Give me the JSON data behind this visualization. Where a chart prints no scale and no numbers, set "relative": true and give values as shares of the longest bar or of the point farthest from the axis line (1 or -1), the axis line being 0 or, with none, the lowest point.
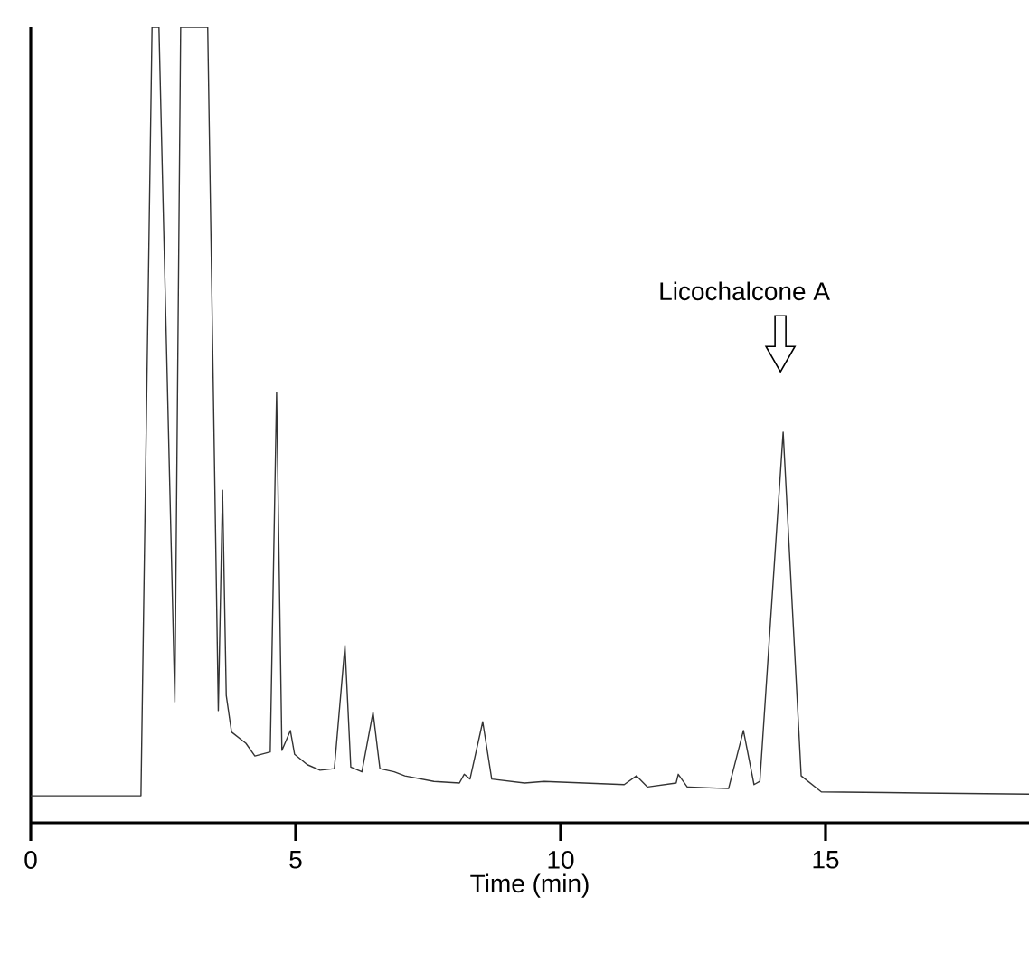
{
  "chart_data": {
    "type": "line",
    "relative": true,
    "xlabel": "Time (min)",
    "xlim": [
      0,
      18.84
    ],
    "xticks": [
      0,
      5,
      10,
      15
    ],
    "grid": false,
    "marker": "none",
    "line_style": "solid",
    "annotations": [
      "Licochalcone A"
    ],
    "series": [
      {
        "color": "#333333",
        "x": [
          0,
          2.08,
          2.29,
          2.42,
          2.72,
          2.83,
          3.34,
          3.54,
          3.62,
          3.69,
          3.79,
          4.06,
          4.23,
          4.52,
          4.64,
          4.74,
          4.9,
          4.98,
          5.22,
          5.46,
          5.73,
          5.93,
          6.04,
          6.25,
          6.46,
          6.59,
          6.86,
          7.06,
          7.61,
          8.09,
          8.18,
          8.29,
          8.53,
          8.7,
          9.32,
          9.69,
          11.2,
          11.43,
          11.64,
          12.18,
          12.22,
          12.39,
          13.17,
          13.45,
          13.65,
          13.76,
          14.2,
          14.54,
          14.92,
          16.14,
          18.84
        ],
        "values": [
          0.034,
          0.034,
          1,
          1,
          0.152,
          1,
          1,
          0.141,
          0.418,
          0.16,
          0.114,
          0.1,
          0.084,
          0.089,
          0.541,
          0.091,
          0.116,
          0.086,
          0.073,
          0.066,
          0.068,
          0.223,
          0.07,
          0.064,
          0.139,
          0.068,
          0.064,
          0.059,
          0.052,
          0.05,
          0.061,
          0.055,
          0.127,
          0.055,
          0.05,
          0.052,
          0.048,
          0.059,
          0.045,
          0.05,
          0.061,
          0.045,
          0.043,
          0.116,
          0.048,
          0.052,
          0.491,
          0.059,
          0.039,
          0.038,
          0.036
        ]
      }
    ]
  }
}
